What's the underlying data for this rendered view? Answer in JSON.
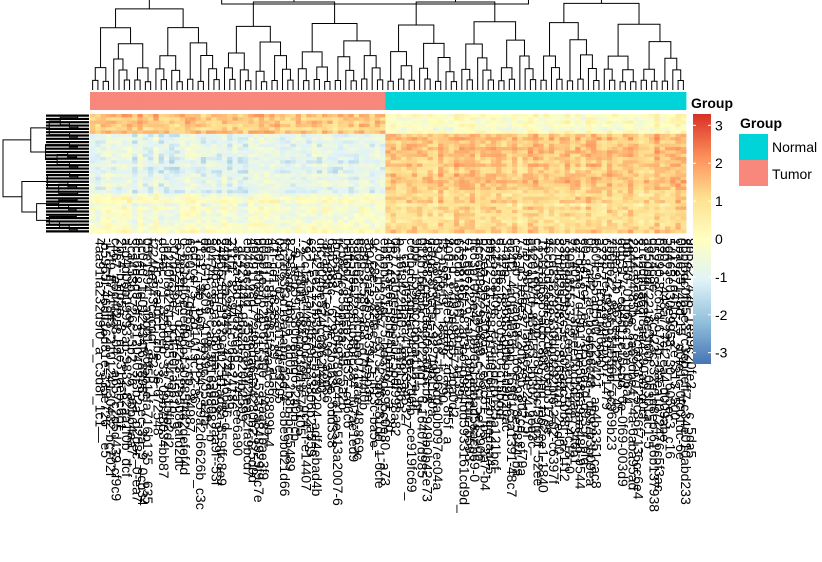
{
  "chart_data": {
    "type": "heatmap",
    "annotation": {
      "title": "Group",
      "legend_title": "Group",
      "entries": [
        {
          "label": "Normal",
          "color": "#00D4D8"
        },
        {
          "label": "Tumor",
          "color": "#F8877C"
        }
      ],
      "column_groups": [
        {
          "group": "Tumor",
          "count": 56
        },
        {
          "group": "Normal",
          "count": 57
        }
      ]
    },
    "colorbar": {
      "ticks": [
        "3",
        "2",
        "1",
        "0",
        "-1",
        "-2",
        "-3"
      ],
      "range": [
        -3.3,
        3.3
      ],
      "colors": [
        "#4575B4",
        "#91BFDB",
        "#E0F3F8",
        "#FFFFBF",
        "#FEE090",
        "#FC8D59",
        "#D73027"
      ]
    },
    "row_dendrogram": true,
    "column_dendrogram": true,
    "n_rows": 36,
    "n_cols": 113,
    "row_blocks": [
      {
        "rows": 6,
        "tumor": 1.3,
        "normal": -0.1
      },
      {
        "rows": 18,
        "tumor": -0.9,
        "normal": 1.4
      },
      {
        "rows": 12,
        "tumor": -0.3,
        "normal": 1.1
      }
    ],
    "column_labels_note": "dense unreadable sample IDs rotated 90 degrees"
  }
}
